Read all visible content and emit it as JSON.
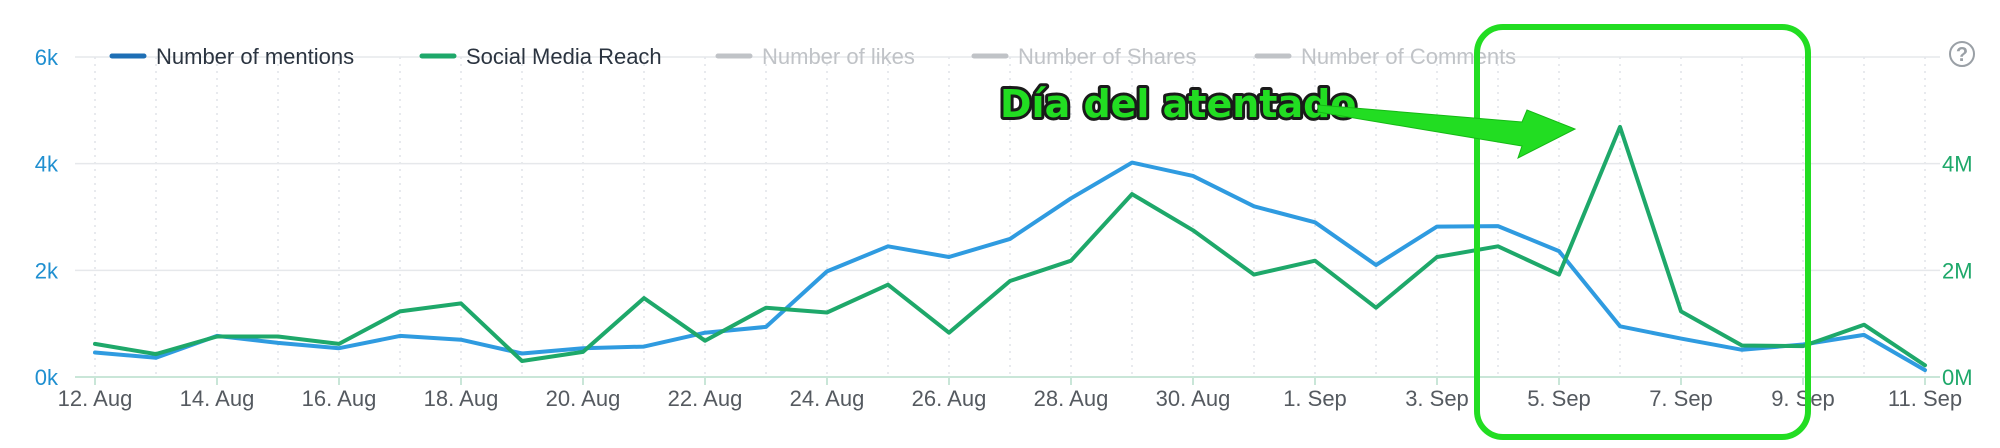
{
  "chart_data": {
    "type": "line",
    "title": "",
    "xlabel": "",
    "categories": [
      "12. Aug",
      "13. Aug",
      "14. Aug",
      "15. Aug",
      "16. Aug",
      "17. Aug",
      "18. Aug",
      "19. Aug",
      "20. Aug",
      "21. Aug",
      "22. Aug",
      "23. Aug",
      "24. Aug",
      "25. Aug",
      "26. Aug",
      "27. Aug",
      "28. Aug",
      "29. Aug",
      "30. Aug",
      "31. Aug",
      "1. Sep",
      "2. Sep",
      "3. Sep",
      "4. Sep",
      "5. Sep",
      "6. Sep",
      "7. Sep",
      "8. Sep",
      "9. Sep",
      "10. Sep",
      "11. Sep"
    ],
    "x_tick_labels": [
      "12. Aug",
      "14. Aug",
      "16. Aug",
      "18. Aug",
      "20. Aug",
      "22. Aug",
      "24. Aug",
      "26. Aug",
      "28. Aug",
      "30. Aug",
      "1. Sep",
      "3. Sep",
      "5. Sep",
      "7. Sep",
      "9. Sep",
      "11. Sep"
    ],
    "y_left": {
      "ylim": [
        0,
        6000
      ],
      "ticks": [
        0,
        2000,
        4000,
        6000
      ],
      "tick_labels": [
        "0k",
        "2k",
        "4k",
        "6k"
      ],
      "color": "#1f8fd0"
    },
    "y_right": {
      "ylim": [
        0,
        6000000
      ],
      "ticks": [
        0,
        2000000,
        4000000
      ],
      "tick_labels": [
        "0M",
        "2M",
        "4M"
      ],
      "color": "#1ea86a"
    },
    "grid": true,
    "legend_position": "top",
    "series": [
      {
        "name": "Number of mentions",
        "axis": "left",
        "color": "#2f9be0",
        "legend_color": "#1e6fb5",
        "visible": true,
        "values": [
          460,
          360,
          770,
          640,
          540,
          770,
          700,
          440,
          540,
          570,
          830,
          940,
          1980,
          2450,
          2250,
          2590,
          3350,
          4020,
          3770,
          3200,
          2900,
          2100,
          2820,
          2830,
          2360,
          950,
          720,
          510,
          610,
          790,
          130
        ]
      },
      {
        "name": "Social Media Reach",
        "axis": "right",
        "color": "#1ea86a",
        "legend_color": "#1ea86a",
        "visible": true,
        "values": [
          620000,
          430000,
          760000,
          760000,
          620000,
          1230000,
          1380000,
          300000,
          470000,
          1480000,
          680000,
          1300000,
          1210000,
          1730000,
          830000,
          1800000,
          2180000,
          3430000,
          2750000,
          1920000,
          2180000,
          1300000,
          2250000,
          2450000,
          1920000,
          4690000,
          1230000,
          590000,
          580000,
          980000,
          220000
        ]
      },
      {
        "name": "Number of likes",
        "visible": false,
        "color": "#c0c3c7"
      },
      {
        "name": "Number of Shares",
        "visible": false,
        "color": "#c0c3c7"
      },
      {
        "name": "Number of Comments",
        "visible": false,
        "color": "#c0c3c7"
      }
    ],
    "annotation": {
      "text": "Día del atentado",
      "color": "#22dd22",
      "points_to": "6. Sep"
    },
    "highlight": {
      "from": "4. Sep",
      "to": "9. Sep",
      "color": "#22dd22"
    }
  },
  "ui": {
    "help_icon": "help-circle-icon",
    "help_glyph": "?"
  }
}
